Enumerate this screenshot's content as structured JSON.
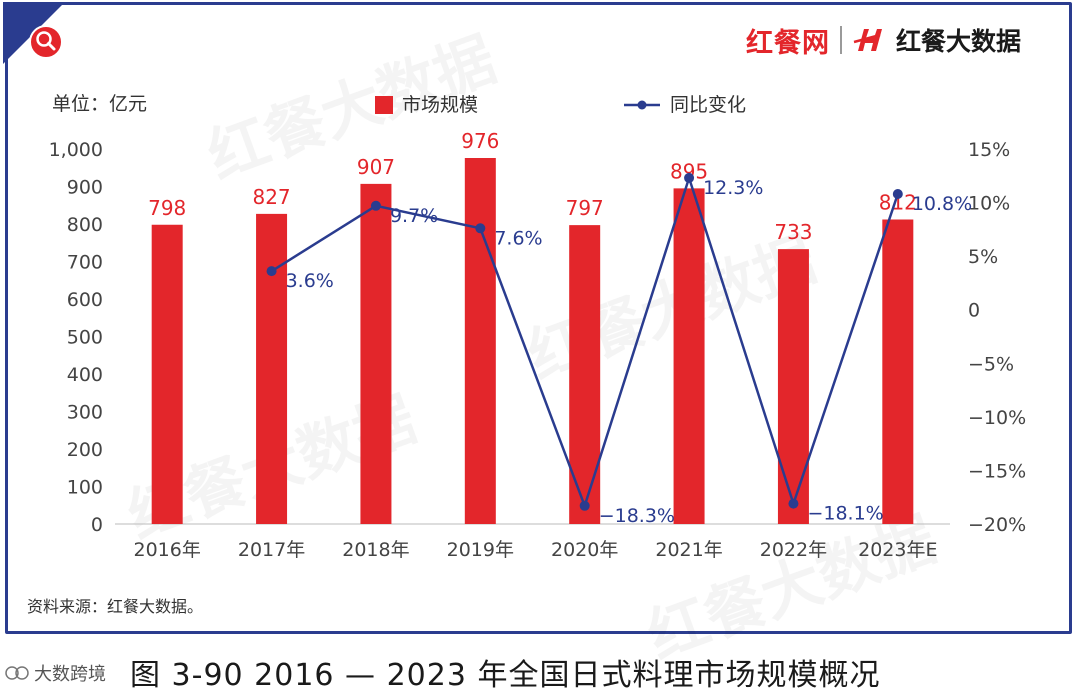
{
  "brand": {
    "name": "红餐网",
    "sub": "红餐大数据"
  },
  "unit_label": "单位：亿元",
  "source": "资料来源：红餐大数据。",
  "caption": "图 3-90    2016 — 2023 年全国日式料理市场规模概况",
  "credit": "大数跨境",
  "colors": {
    "bar": "#e3262b",
    "line": "#2a3c8f",
    "frame": "#2a3c8f"
  },
  "chart_data": {
    "type": "bar",
    "categories": [
      "2016年",
      "2017年",
      "2018年",
      "2019年",
      "2020年",
      "2021年",
      "2022年",
      "2023年E"
    ],
    "series": [
      {
        "name": "市场规模",
        "type": "bar",
        "axis": "left",
        "values": [
          798,
          827,
          907,
          976,
          797,
          895,
          733,
          812
        ]
      },
      {
        "name": "同比变化",
        "type": "line",
        "axis": "right",
        "values": [
          null,
          3.6,
          9.7,
          7.6,
          -18.3,
          12.3,
          -18.1,
          10.8
        ]
      }
    ],
    "bar_labels": [
      "798",
      "827",
      "907",
      "976",
      "797",
      "895",
      "733",
      "812"
    ],
    "line_labels": [
      null,
      "3.6%",
      "9.7%",
      "7.6%",
      "−18.3%",
      "12.3%",
      "−18.1%",
      "10.8%"
    ],
    "ylim": [
      0,
      1000
    ],
    "yticks": [
      0,
      100,
      200,
      300,
      400,
      500,
      600,
      700,
      800,
      900,
      1000
    ],
    "ytick_labels": [
      "0",
      "100",
      "200",
      "300",
      "400",
      "500",
      "600",
      "700",
      "800",
      "900",
      "1,000"
    ],
    "y2lim": [
      -20,
      15
    ],
    "y2ticks": [
      -20,
      -15,
      -10,
      -5,
      0,
      5,
      10,
      15
    ],
    "y2tick_labels": [
      "−20%",
      "−15%",
      "−10%",
      "−5%",
      "0",
      "5%",
      "10%",
      "15%"
    ],
    "legend_position": "top",
    "grid": false
  },
  "watermark_text": "红餐大数据"
}
